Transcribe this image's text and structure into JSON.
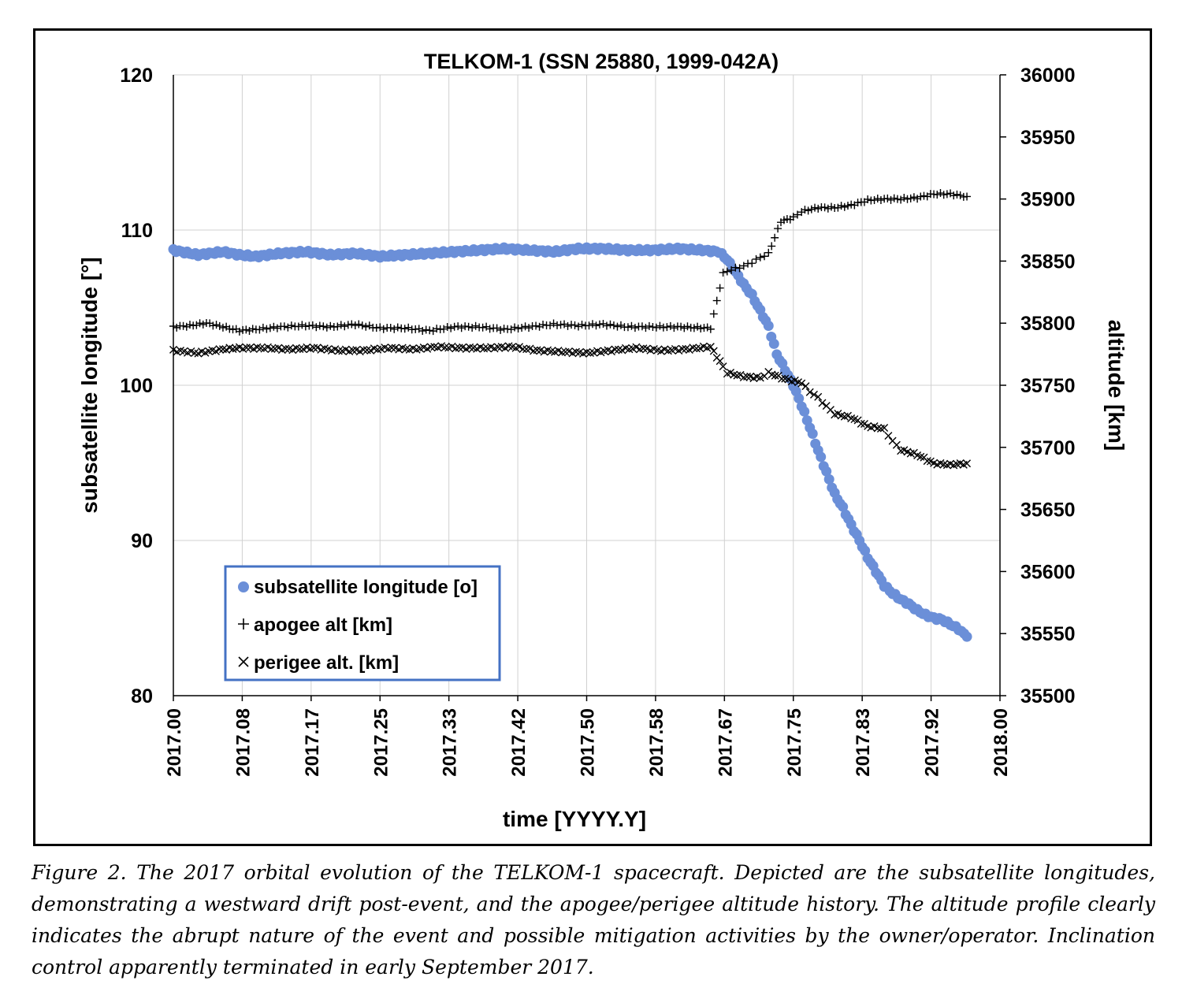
{
  "chart_data": {
    "type": "scatter",
    "title": "TELKOM-1 (SSN 25880, 1999-042A)",
    "xlabel": "time [YYYY.Y]",
    "ylabel": "subsatellite longitude [°]",
    "y2label": "altitude [km]",
    "xlim": [
      2017.0,
      2018.0
    ],
    "ylim": [
      80,
      120
    ],
    "y2lim": [
      35500,
      36000
    ],
    "xticks": [
      "2017.00",
      "2017.08",
      "2017.17",
      "2017.25",
      "2017.33",
      "2017.42",
      "2017.50",
      "2017.58",
      "2017.67",
      "2017.75",
      "2017.83",
      "2017.92",
      "2018.00"
    ],
    "yticks": [
      "80",
      "90",
      "100",
      "110",
      "120"
    ],
    "y2ticks": [
      "35500",
      "35550",
      "35600",
      "35650",
      "35700",
      "35750",
      "35800",
      "35850",
      "35900",
      "35950",
      "36000"
    ],
    "grid": true,
    "legend_position": "bottom-left",
    "series": [
      {
        "name": "subsatellite longitude [o]",
        "axis": "left",
        "marker": "circle",
        "color": "#6b8fd8",
        "points": [
          [
            2017.0,
            108.7
          ],
          [
            2017.03,
            108.4
          ],
          [
            2017.06,
            108.6
          ],
          [
            2017.08,
            108.4
          ],
          [
            2017.1,
            108.3
          ],
          [
            2017.13,
            108.5
          ],
          [
            2017.16,
            108.6
          ],
          [
            2017.19,
            108.4
          ],
          [
            2017.22,
            108.5
          ],
          [
            2017.25,
            108.3
          ],
          [
            2017.28,
            108.4
          ],
          [
            2017.31,
            108.5
          ],
          [
            2017.34,
            108.6
          ],
          [
            2017.37,
            108.7
          ],
          [
            2017.4,
            108.8
          ],
          [
            2017.43,
            108.7
          ],
          [
            2017.46,
            108.6
          ],
          [
            2017.49,
            108.8
          ],
          [
            2017.52,
            108.8
          ],
          [
            2017.55,
            108.7
          ],
          [
            2017.58,
            108.7
          ],
          [
            2017.61,
            108.8
          ],
          [
            2017.64,
            108.7
          ],
          [
            2017.66,
            108.6
          ],
          [
            2017.67,
            108.1
          ],
          [
            2017.68,
            107.3
          ],
          [
            2017.69,
            106.5
          ],
          [
            2017.7,
            105.8
          ],
          [
            2017.71,
            104.8
          ],
          [
            2017.72,
            103.8
          ],
          [
            2017.73,
            102.0
          ],
          [
            2017.74,
            101.0
          ],
          [
            2017.75,
            100.0
          ],
          [
            2017.76,
            98.7
          ],
          [
            2017.77,
            97.3
          ],
          [
            2017.78,
            95.8
          ],
          [
            2017.79,
            94.4
          ],
          [
            2017.8,
            93.0
          ],
          [
            2017.81,
            92.1
          ],
          [
            2017.82,
            91.0
          ],
          [
            2017.83,
            90.0
          ],
          [
            2017.84,
            88.9
          ],
          [
            2017.85,
            88.0
          ],
          [
            2017.86,
            87.1
          ],
          [
            2017.87,
            86.6
          ],
          [
            2017.88,
            86.2
          ],
          [
            2017.89,
            85.9
          ],
          [
            2017.9,
            85.5
          ],
          [
            2017.91,
            85.2
          ],
          [
            2017.92,
            85.0
          ],
          [
            2017.93,
            84.9
          ],
          [
            2017.94,
            84.6
          ],
          [
            2017.95,
            84.3
          ],
          [
            2017.96,
            83.8
          ]
        ]
      },
      {
        "name": "apogee alt [km]",
        "axis": "right",
        "marker": "plus",
        "color": "#000000",
        "points": [
          [
            2017.0,
            35797
          ],
          [
            2017.02,
            35798
          ],
          [
            2017.04,
            35800
          ],
          [
            2017.06,
            35797
          ],
          [
            2017.08,
            35794
          ],
          [
            2017.1,
            35795
          ],
          [
            2017.13,
            35797
          ],
          [
            2017.16,
            35798
          ],
          [
            2017.19,
            35797
          ],
          [
            2017.22,
            35799
          ],
          [
            2017.25,
            35796
          ],
          [
            2017.28,
            35796
          ],
          [
            2017.31,
            35794
          ],
          [
            2017.34,
            35797
          ],
          [
            2017.37,
            35797
          ],
          [
            2017.4,
            35795
          ],
          [
            2017.43,
            35797
          ],
          [
            2017.46,
            35799
          ],
          [
            2017.49,
            35798
          ],
          [
            2017.52,
            35799
          ],
          [
            2017.55,
            35797
          ],
          [
            2017.58,
            35797
          ],
          [
            2017.61,
            35797
          ],
          [
            2017.65,
            35796
          ],
          [
            2017.665,
            35840
          ],
          [
            2017.67,
            35842
          ],
          [
            2017.68,
            35844
          ],
          [
            2017.69,
            35846
          ],
          [
            2017.7,
            35849
          ],
          [
            2017.71,
            35853
          ],
          [
            2017.72,
            35856
          ],
          [
            2017.735,
            35882
          ],
          [
            2017.75,
            35885
          ],
          [
            2017.76,
            35890
          ],
          [
            2017.78,
            35893
          ],
          [
            2017.8,
            35893
          ],
          [
            2017.82,
            35895
          ],
          [
            2017.84,
            35899
          ],
          [
            2017.86,
            35900
          ],
          [
            2017.88,
            35900
          ],
          [
            2017.9,
            35901
          ],
          [
            2017.92,
            35904
          ],
          [
            2017.94,
            35904
          ],
          [
            2017.96,
            35902
          ]
        ]
      },
      {
        "name": "perigee alt. [km]",
        "axis": "right",
        "marker": "x",
        "color": "#000000",
        "points": [
          [
            2017.0,
            35778
          ],
          [
            2017.03,
            35776
          ],
          [
            2017.06,
            35779
          ],
          [
            2017.08,
            35780
          ],
          [
            2017.11,
            35780
          ],
          [
            2017.14,
            35779
          ],
          [
            2017.17,
            35780
          ],
          [
            2017.2,
            35778
          ],
          [
            2017.23,
            35778
          ],
          [
            2017.26,
            35780
          ],
          [
            2017.29,
            35779
          ],
          [
            2017.32,
            35781
          ],
          [
            2017.35,
            35780
          ],
          [
            2017.38,
            35780
          ],
          [
            2017.41,
            35781
          ],
          [
            2017.44,
            35778
          ],
          [
            2017.47,
            35777
          ],
          [
            2017.5,
            35776
          ],
          [
            2017.53,
            35778
          ],
          [
            2017.56,
            35780
          ],
          [
            2017.59,
            35778
          ],
          [
            2017.62,
            35779
          ],
          [
            2017.65,
            35781
          ],
          [
            2017.665,
            35765
          ],
          [
            2017.67,
            35760
          ],
          [
            2017.69,
            35757
          ],
          [
            2017.71,
            35756
          ],
          [
            2017.72,
            35760
          ],
          [
            2017.74,
            35755
          ],
          [
            2017.76,
            35752
          ],
          [
            2017.77,
            35745
          ],
          [
            2017.78,
            35740
          ],
          [
            2017.79,
            35733
          ],
          [
            2017.8,
            35727
          ],
          [
            2017.82,
            35724
          ],
          [
            2017.84,
            35717
          ],
          [
            2017.86,
            35715
          ],
          [
            2017.87,
            35705
          ],
          [
            2017.88,
            35698
          ],
          [
            2017.9,
            35694
          ],
          [
            2017.92,
            35687
          ],
          [
            2017.94,
            35686
          ],
          [
            2017.96,
            35687
          ]
        ]
      }
    ]
  },
  "caption": "Figure 2. The 2017 orbital evolution of the TELKOM-1 spacecraft.  Depicted are the subsatellite longitudes, demonstrating a westward drift post-event, and the apogee/perigee altitude history. The altitude profile clearly indicates the abrupt nature of the event and possible mitigation activities by the owner/operator.  Inclination control apparently terminated in early September 2017."
}
